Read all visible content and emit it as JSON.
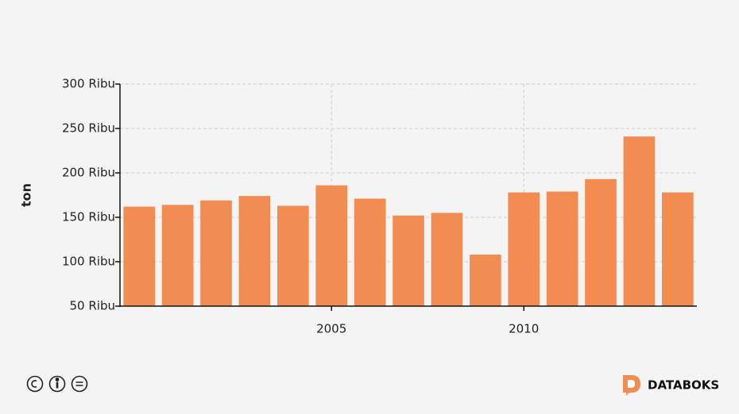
{
  "chart_data": {
    "type": "bar",
    "y_label": "ton",
    "x": [
      2000,
      2001,
      2002,
      2003,
      2004,
      2005,
      2006,
      2007,
      2008,
      2009,
      2010,
      2011,
      2012,
      2013,
      2014
    ],
    "values": [
      162,
      164,
      169,
      174,
      163,
      186,
      171,
      152,
      155,
      108,
      178,
      179,
      193,
      241,
      178
    ],
    "color": "#f28c51",
    "xlim": [
      1999.5,
      2014.5
    ],
    "xticks": [
      2005,
      2010
    ],
    "ylim": [
      50,
      300
    ],
    "yticks": [
      {
        "value": 50,
        "label": "50 Ribu"
      },
      {
        "value": 100,
        "label": "100 Ribu"
      },
      {
        "value": 150,
        "label": "150 Ribu"
      },
      {
        "value": 200,
        "label": "200 Ribu"
      },
      {
        "value": 250,
        "label": "250 Ribu"
      },
      {
        "value": 300,
        "label": "300 Ribu"
      }
    ],
    "grid": true
  },
  "brand": "DATABOKS"
}
